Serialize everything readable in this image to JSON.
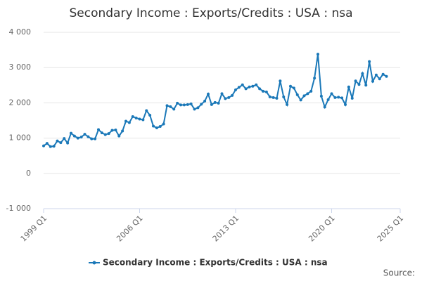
{
  "chart_data": {
    "type": "line",
    "title": "Secondary Income : Exports/Credits : USA : nsa",
    "source": "Source:",
    "categories": [
      "1999 Q1",
      null,
      null,
      null,
      null,
      null,
      null,
      null,
      null,
      null,
      null,
      null,
      null,
      null,
      null,
      null,
      null,
      null,
      null,
      null,
      null,
      null,
      null,
      null,
      null,
      null,
      null,
      null,
      "2006 Q1",
      null,
      null,
      null,
      null,
      null,
      null,
      null,
      null,
      null,
      null,
      null,
      null,
      null,
      null,
      null,
      null,
      null,
      null,
      null,
      null,
      null,
      null,
      null,
      null,
      null,
      null,
      null,
      "2013 Q1",
      null,
      null,
      null,
      null,
      null,
      null,
      null,
      null,
      null,
      null,
      null,
      null,
      null,
      null,
      null,
      null,
      null,
      null,
      null,
      null,
      null,
      null,
      null,
      null,
      null,
      null,
      null,
      "2020 Q1",
      null,
      null,
      null,
      null,
      null,
      null,
      null,
      null,
      null,
      null,
      null,
      null,
      null,
      null,
      null,
      null,
      null,
      null,
      null,
      "2025 Q1"
    ],
    "series": [
      {
        "name": "Secondary Income : Exports/Credits : USA : nsa",
        "color": "#1a78b8",
        "values": [
          780,
          850,
          760,
          770,
          920,
          870,
          990,
          860,
          1140,
          1060,
          1000,
          1030,
          1110,
          1040,
          980,
          980,
          1240,
          1150,
          1100,
          1130,
          1220,
          1230,
          1060,
          1200,
          1480,
          1440,
          1610,
          1570,
          1540,
          1520,
          1780,
          1650,
          1340,
          1290,
          1330,
          1400,
          1920,
          1890,
          1820,
          1990,
          1940,
          1940,
          1950,
          1970,
          1820,
          1860,
          1960,
          2050,
          2250,
          1950,
          2010,
          1990,
          2260,
          2120,
          2150,
          2210,
          2370,
          2440,
          2510,
          2400,
          2450,
          2470,
          2510,
          2400,
          2330,
          2310,
          2170,
          2150,
          2130,
          2620,
          2170,
          1950,
          2470,
          2420,
          2230,
          2080,
          2200,
          2260,
          2330,
          2700,
          3380,
          2190,
          1880,
          2090,
          2260,
          2150,
          2160,
          2140,
          1950,
          2450,
          2130,
          2620,
          2520,
          2830,
          2500,
          3170,
          2610,
          2790,
          2680,
          2810,
          2750,
          null,
          null,
          null,
          null
        ]
      }
    ],
    "ylim": [
      -1000,
      4000
    ],
    "yticks": [
      {
        "value": -1000,
        "label": "-1 000"
      },
      0,
      {
        "value": 1000,
        "label": "1 000"
      },
      {
        "value": 2000,
        "label": "2 000"
      },
      {
        "value": 3000,
        "label": "3 000"
      },
      {
        "value": 4000,
        "label": "4 000"
      }
    ],
    "grid": true
  }
}
